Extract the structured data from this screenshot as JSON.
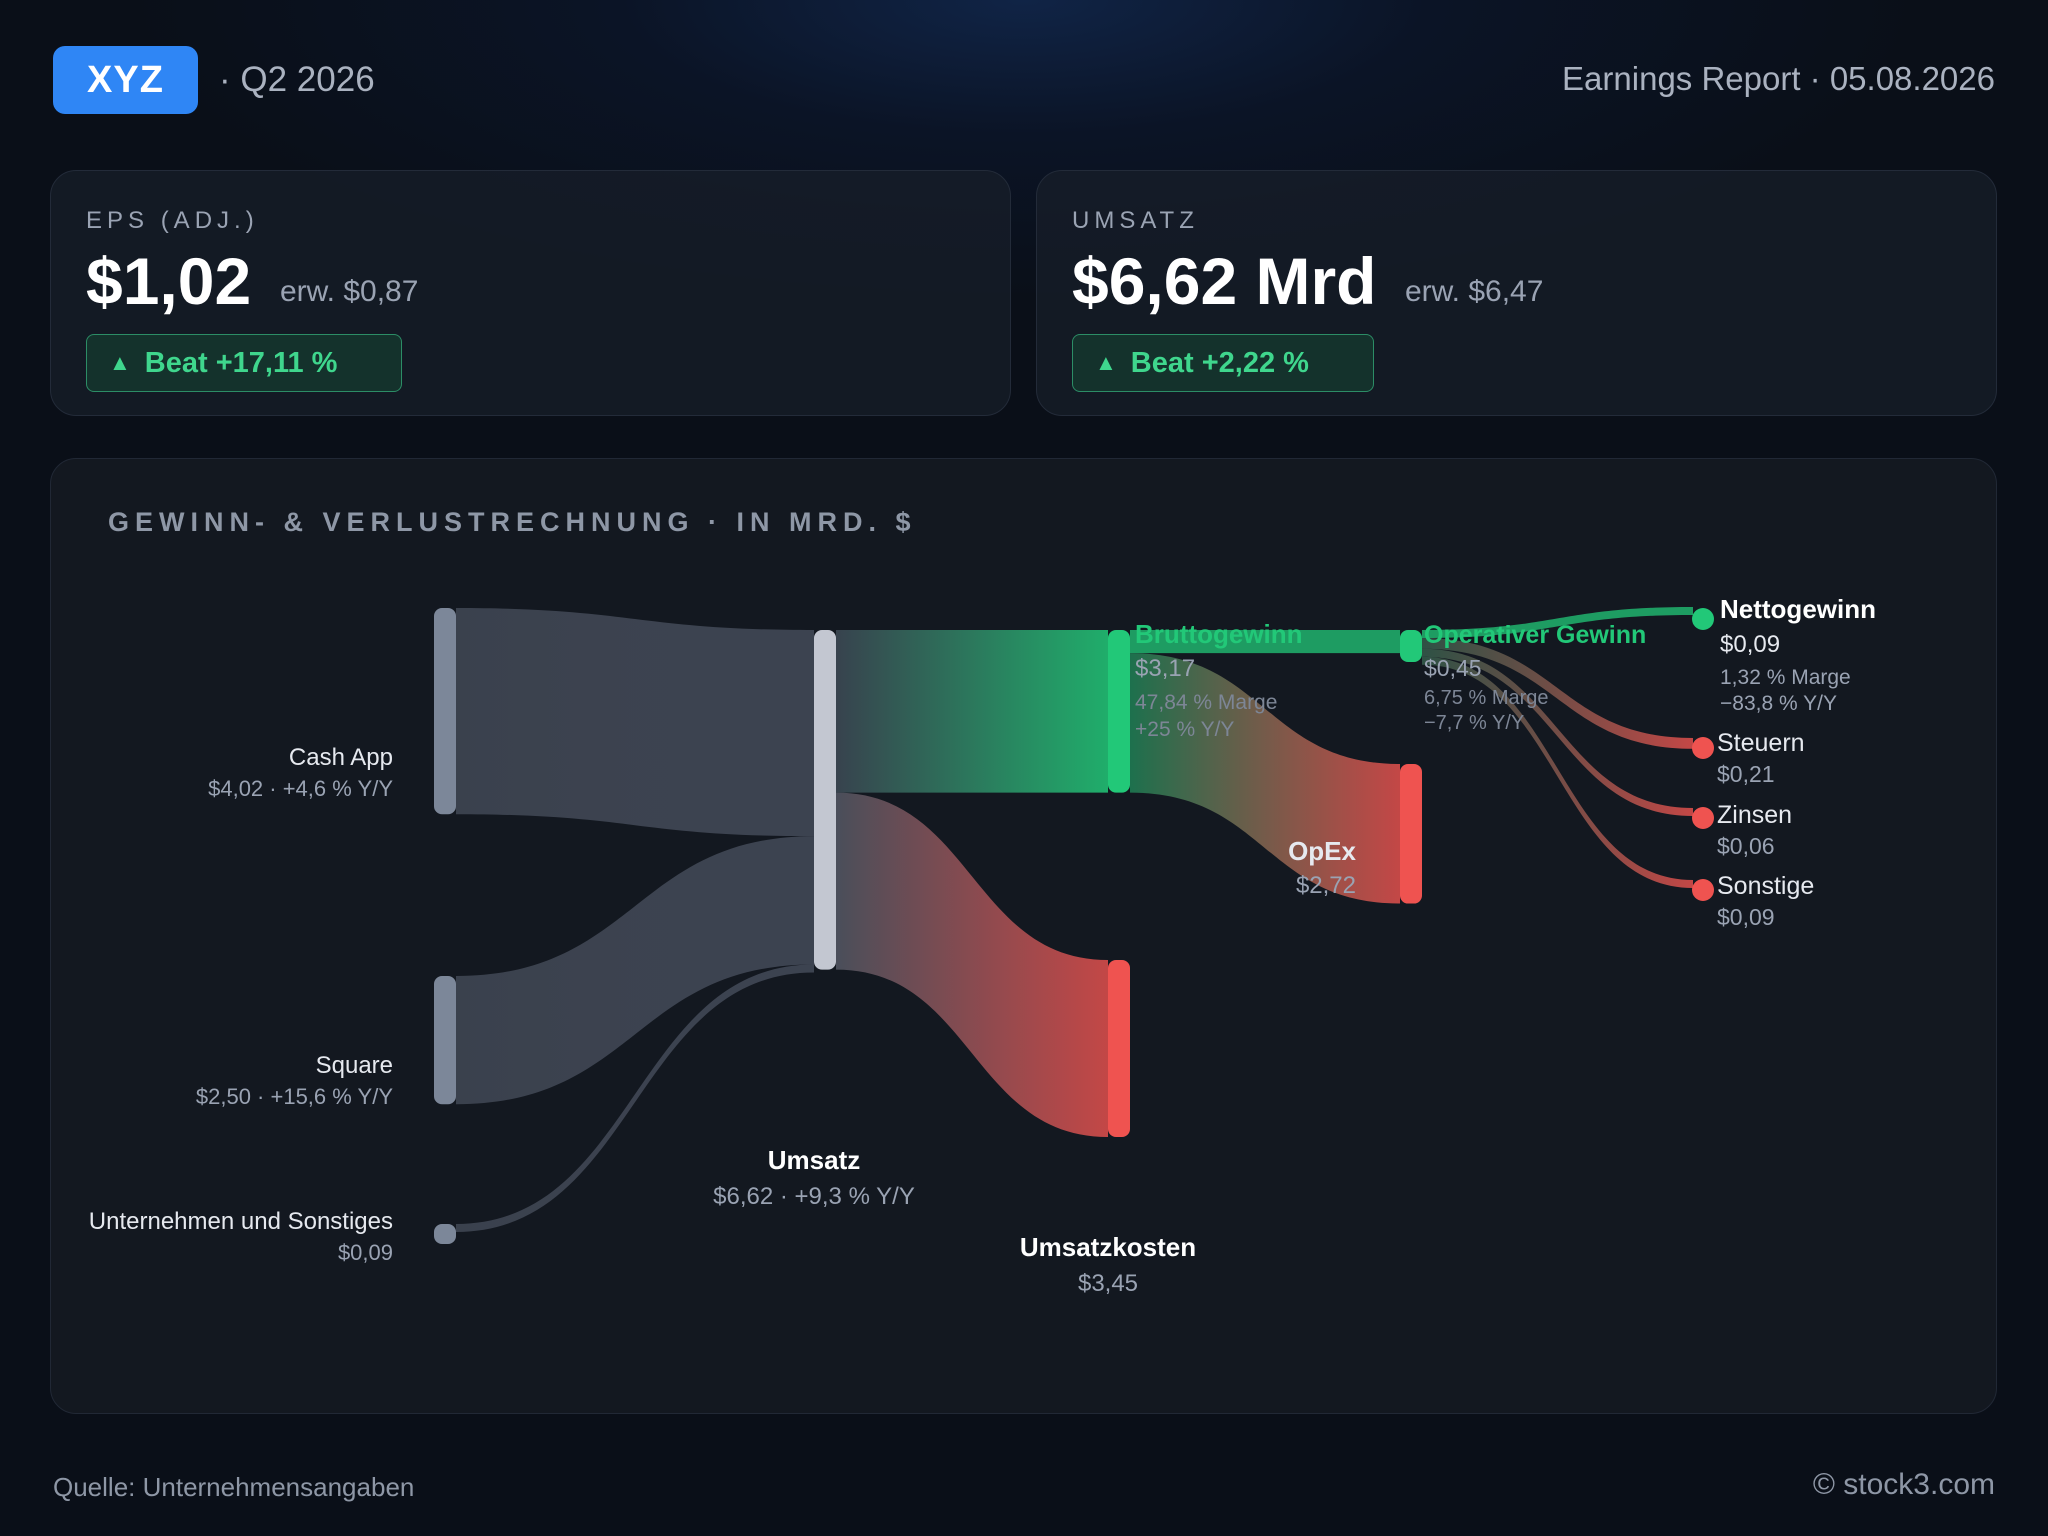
{
  "header": {
    "ticker": "XYZ",
    "quarter": "· Q2 2026",
    "report": "Earnings Report · 05.08.2026"
  },
  "kpis": {
    "eps": {
      "label": "EPS (ADJ.)",
      "value": "$1,02",
      "estimate": "erw. $0,87",
      "beat": "Beat +17,11 %"
    },
    "revenue": {
      "label": "UMSATZ",
      "value": "$6,62 Mrd",
      "estimate": "erw. $6,47",
      "beat": "Beat +2,22 %"
    }
  },
  "panel": {
    "title": "GEWINN- & VERLUSTRECHNUNG · IN MRD. $"
  },
  "colors": {
    "accent": "#2f86f5",
    "positive": "#22c878",
    "negative": "#ef5350",
    "neutral_node": "#7c8799",
    "total_node": "#c3c7d1"
  },
  "chart_data": {
    "type": "sankey",
    "unit": "Mrd. $",
    "nodes": [
      {
        "id": "cashapp",
        "name": "Cash App",
        "value": 4.02,
        "detail": "$4,02 · +4,6 % Y/Y"
      },
      {
        "id": "square",
        "name": "Square",
        "value": 2.5,
        "detail": "$2,50 · +15,6 % Y/Y"
      },
      {
        "id": "other",
        "name": "Unternehmen und Sonstiges",
        "value": 0.09,
        "detail": "$0,09"
      },
      {
        "id": "revenue",
        "name": "Umsatz",
        "value": 6.62,
        "detail": "$6,62 · +9,3 % Y/Y"
      },
      {
        "id": "gross",
        "name": "Bruttogewinn",
        "value": 3.17,
        "detail": "$3,17",
        "margin": "47,84 % Marge",
        "yoy": "+25 % Y/Y"
      },
      {
        "id": "cogs",
        "name": "Umsatzkosten",
        "value": 3.45,
        "detail": "$3,45"
      },
      {
        "id": "opinc",
        "name": "Operativer Gewinn",
        "value": 0.45,
        "detail": "$0,45",
        "margin": "6,75 % Marge",
        "yoy": "−7,7 % Y/Y"
      },
      {
        "id": "opex",
        "name": "OpEx",
        "value": 2.72,
        "detail": "$2,72"
      },
      {
        "id": "net",
        "name": "Nettogewinn",
        "value": 0.09,
        "detail": "$0,09",
        "margin": "1,32 % Marge",
        "yoy": "−83,8 % Y/Y"
      },
      {
        "id": "tax",
        "name": "Steuern",
        "value": 0.21,
        "detail": "$0,21"
      },
      {
        "id": "interest",
        "name": "Zinsen",
        "value": 0.06,
        "detail": "$0,06"
      },
      {
        "id": "misc",
        "name": "Sonstige",
        "value": 0.09,
        "detail": "$0,09"
      }
    ],
    "links": [
      {
        "source": "cashapp",
        "target": "revenue",
        "value": 4.02
      },
      {
        "source": "square",
        "target": "revenue",
        "value": 2.5
      },
      {
        "source": "other",
        "target": "revenue",
        "value": 0.09
      },
      {
        "source": "revenue",
        "target": "gross",
        "value": 3.17
      },
      {
        "source": "revenue",
        "target": "cogs",
        "value": 3.45
      },
      {
        "source": "gross",
        "target": "opinc",
        "value": 0.45
      },
      {
        "source": "gross",
        "target": "opex",
        "value": 2.72
      },
      {
        "source": "opinc",
        "target": "net",
        "value": 0.09
      },
      {
        "source": "opinc",
        "target": "tax",
        "value": 0.21
      },
      {
        "source": "opinc",
        "target": "interest",
        "value": 0.06
      },
      {
        "source": "opinc",
        "target": "misc",
        "value": 0.09
      }
    ]
  },
  "footer": {
    "source": "Quelle: Unternehmensangaben",
    "copyright": "© stock3.com"
  }
}
